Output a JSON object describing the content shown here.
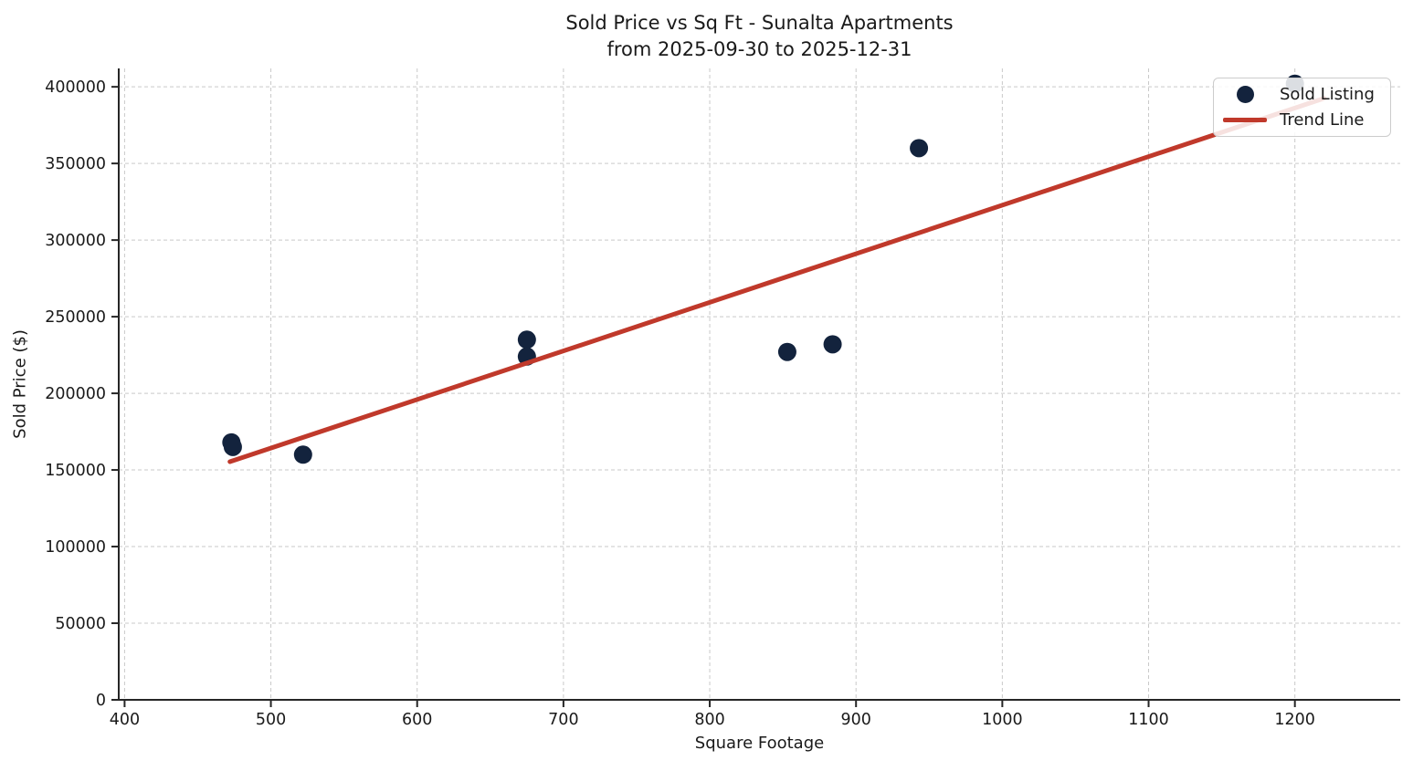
{
  "title": {
    "line1": "Sold Price vs Sq Ft - Sunalta Apartments",
    "line2": "from 2025-09-30 to 2025-12-31"
  },
  "chart_data": {
    "type": "scatter",
    "title": "Sold Price vs Sq Ft - Sunalta Apartments\nfrom 2025-09-30 to 2025-12-31",
    "xlabel": "Square Footage",
    "ylabel": "Sold Price ($)",
    "xlim": [
      396,
      1272
    ],
    "ylim": [
      0,
      412000
    ],
    "x_ticks": [
      400,
      500,
      600,
      700,
      800,
      900,
      1000,
      1100,
      1200
    ],
    "y_ticks": [
      0,
      50000,
      100000,
      150000,
      200000,
      250000,
      300000,
      350000,
      400000
    ],
    "grid": true,
    "grid_style": "dashed",
    "legend_position": "upper right",
    "series": [
      {
        "name": "Sold Listing",
        "kind": "scatter",
        "marker": "circle",
        "color": "#13233d",
        "points": [
          [
            473,
            168000
          ],
          [
            474,
            165000
          ],
          [
            522,
            160000
          ],
          [
            675,
            235000
          ],
          [
            675,
            224000
          ],
          [
            853,
            227000
          ],
          [
            884,
            232000
          ],
          [
            943,
            360000
          ],
          [
            1200,
            402000
          ]
        ]
      },
      {
        "name": "Trend Line",
        "kind": "line",
        "color": "#c0392b",
        "points": [
          [
            472,
            155400
          ],
          [
            1220,
            392500
          ]
        ]
      }
    ]
  },
  "legend": {
    "items": [
      {
        "label": "Sold Listing",
        "marker": "dot",
        "color": "#13233d"
      },
      {
        "label": "Trend Line",
        "marker": "line",
        "color": "#c0392b"
      }
    ]
  },
  "colors": {
    "background": "#ffffff",
    "scatter": "#13233d",
    "trend": "#c0392b",
    "grid": "#c9c9c9",
    "axis": "#262626",
    "text": "#1a1a1a"
  }
}
